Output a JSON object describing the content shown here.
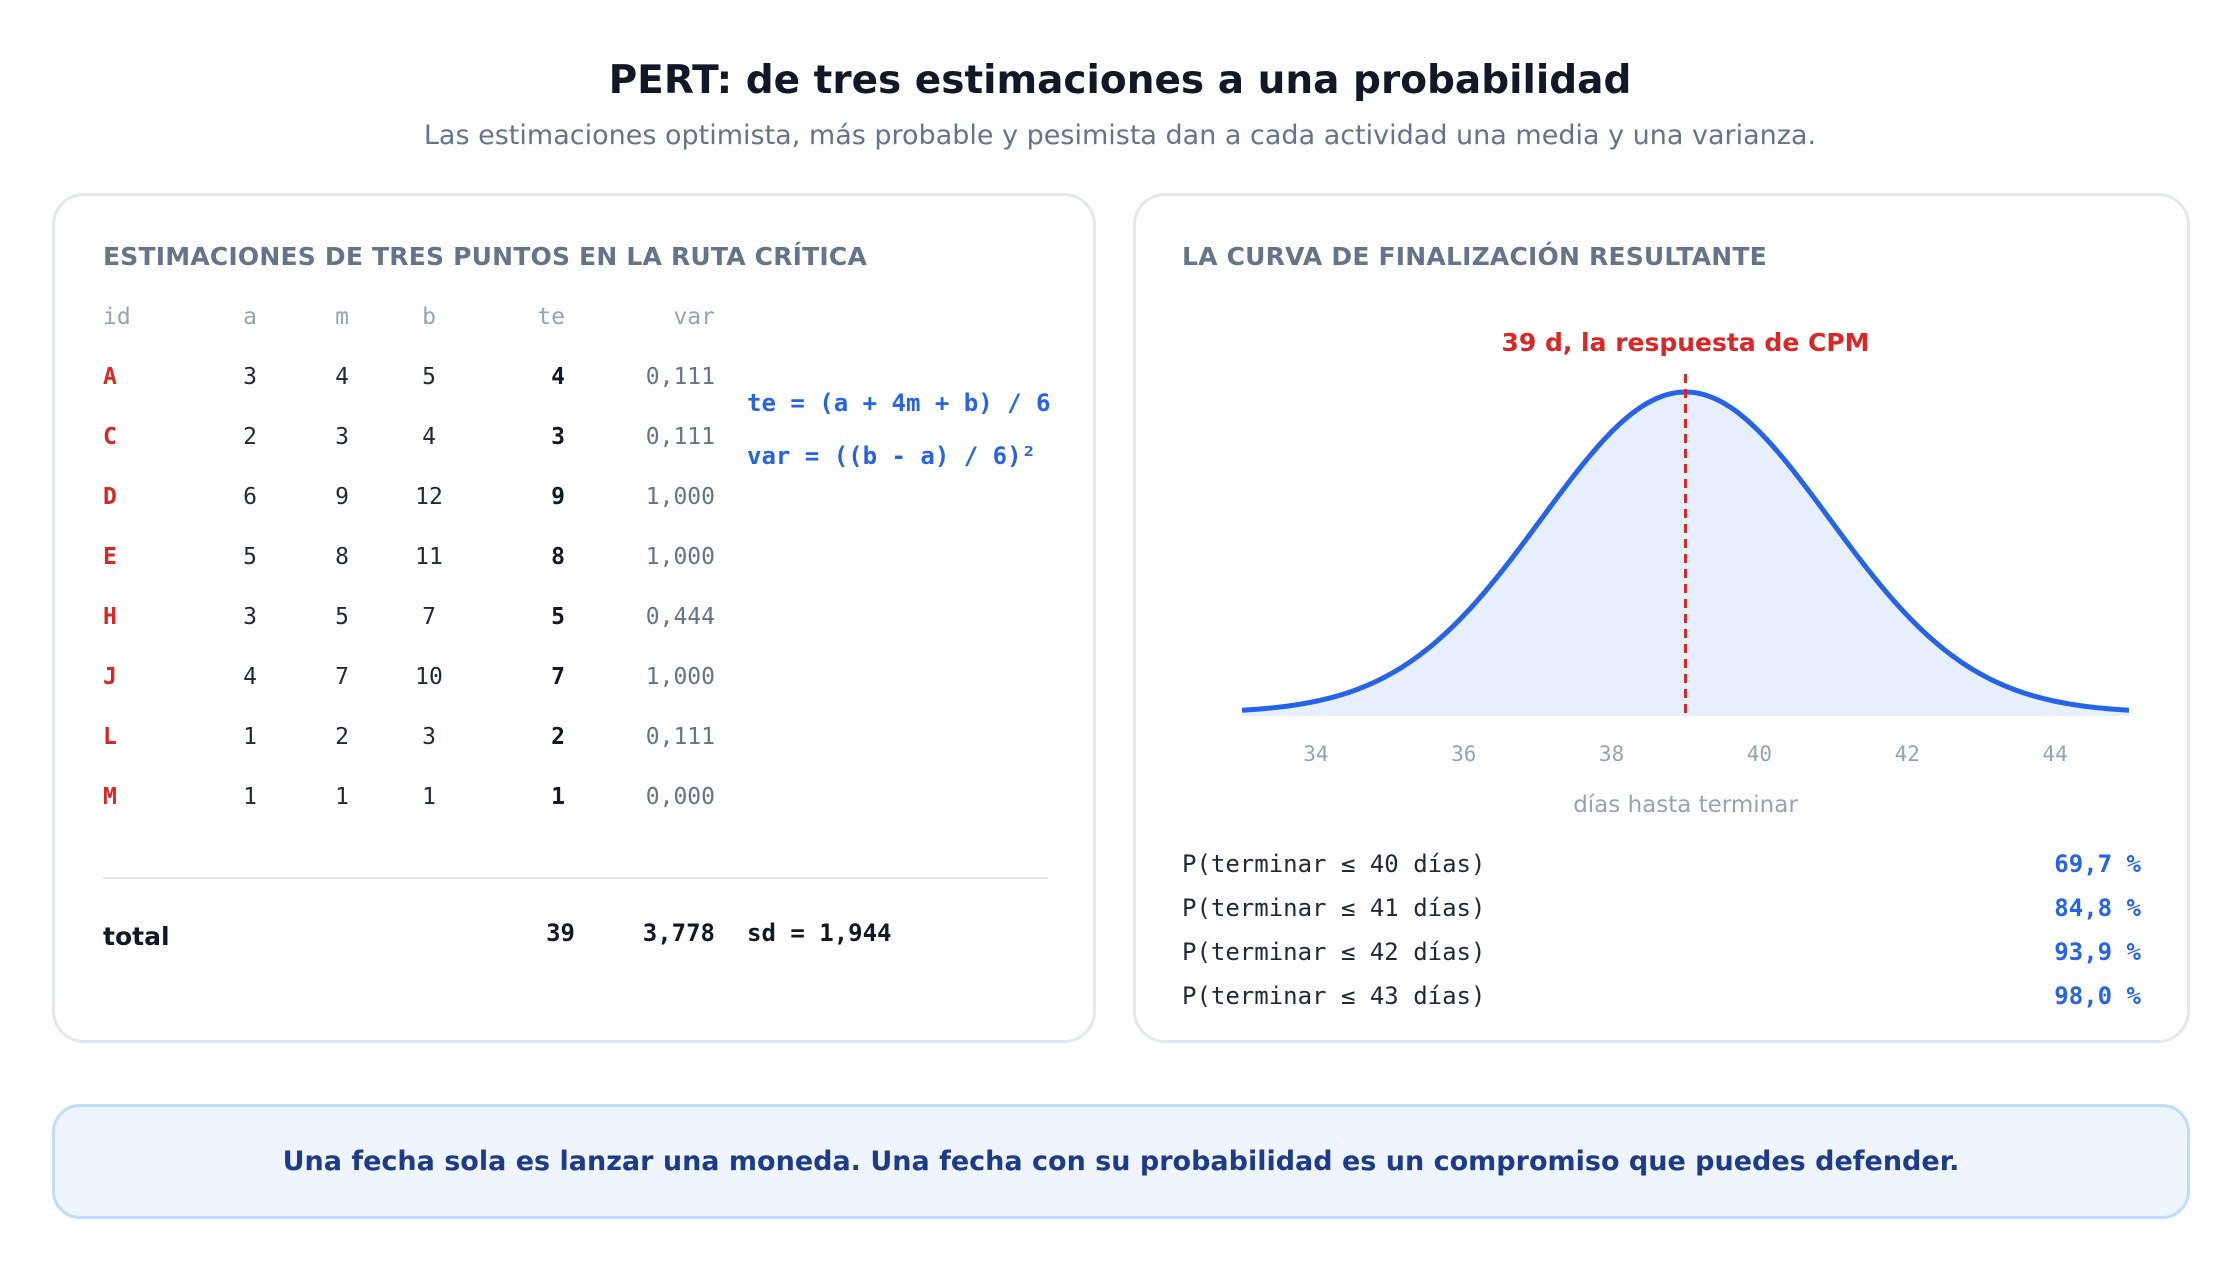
{
  "title": "PERT: de tres estimaciones a una probabilidad",
  "subtitle": "Las estimaciones optimista, más probable y pesimista dan a cada actividad una media y una varianza.",
  "left_card": {
    "heading": "ESTIMACIONES DE TRES PUNTOS EN LA RUTA CRÍTICA",
    "columns": [
      "id",
      "a",
      "m",
      "b",
      "te",
      "var"
    ],
    "rows": [
      {
        "id": "A",
        "a": "3",
        "m": "4",
        "b": "5",
        "te": "4",
        "var": "0,111"
      },
      {
        "id": "C",
        "a": "2",
        "m": "3",
        "b": "4",
        "te": "3",
        "var": "0,111"
      },
      {
        "id": "D",
        "a": "6",
        "m": "9",
        "b": "12",
        "te": "9",
        "var": "1,000"
      },
      {
        "id": "E",
        "a": "5",
        "m": "8",
        "b": "11",
        "te": "8",
        "var": "1,000"
      },
      {
        "id": "H",
        "a": "3",
        "m": "5",
        "b": "7",
        "te": "5",
        "var": "0,444"
      },
      {
        "id": "J",
        "a": "4",
        "m": "7",
        "b": "10",
        "te": "7",
        "var": "1,000"
      },
      {
        "id": "L",
        "a": "1",
        "m": "2",
        "b": "3",
        "te": "2",
        "var": "0,111"
      },
      {
        "id": "M",
        "a": "1",
        "m": "1",
        "b": "1",
        "te": "1",
        "var": "0,000"
      }
    ],
    "formula_te": "te = (a + 4m + b) / 6",
    "formula_var": "var = ((b - a) / 6)²",
    "total_label": "total",
    "total_te": "39",
    "total_var": "3,778",
    "total_sd": "sd = 1,944"
  },
  "right_card": {
    "heading": "LA CURVA DE FINALIZACIÓN RESULTANTE",
    "marker_label": "39 d, la respuesta de CPM",
    "probabilities": [
      {
        "label": "P(terminar ≤ 40 días)",
        "value": "69,7 %"
      },
      {
        "label": "P(terminar ≤ 41 días)",
        "value": "84,8 %"
      },
      {
        "label": "P(terminar ≤ 42 días)",
        "value": "93,9 %"
      },
      {
        "label": "P(terminar ≤ 43 días)",
        "value": "98,0 %"
      }
    ]
  },
  "chart_data": {
    "type": "area",
    "distribution": "normal",
    "mean": 39,
    "sd": 1.944,
    "xlim": [
      33,
      45
    ],
    "x_ticks": [
      34,
      36,
      38,
      40,
      42,
      44
    ],
    "xlabel": "días hasta terminar",
    "ylabel": "",
    "grid": false,
    "marker": {
      "x": 39,
      "label": "39 d, la respuesta de CPM"
    },
    "colors": {
      "curve": "#2563eb",
      "fill": "#e8effc",
      "marker": "#dc2626"
    }
  },
  "callout": {
    "text": "Una fecha sola es lanzar una moneda. Una fecha con su probabilidad es un compromiso que puedes defender."
  },
  "colors": {
    "accent": "#2563eb",
    "id_red": "#dc2626",
    "heading_gray": "#64748b",
    "callout_bg": "#eef5fe",
    "callout_text": "#1e3a8a"
  }
}
